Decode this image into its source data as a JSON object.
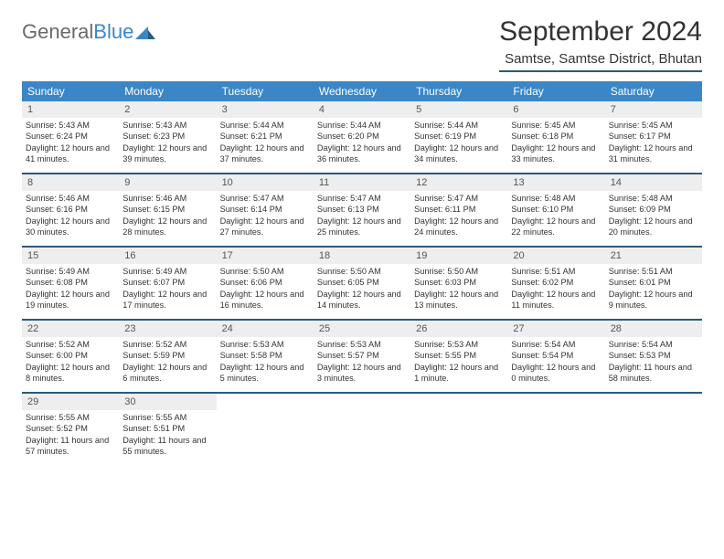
{
  "logo": {
    "text1": "General",
    "text2": "Blue"
  },
  "title": "September 2024",
  "location": "Samtse, Samtse District, Bhutan",
  "colors": {
    "header_bg": "#3b86c6",
    "header_text": "#ffffff",
    "daynum_bg": "#eeeeee",
    "border": "#2b5a7a",
    "logo_gray": "#6a6a6a",
    "logo_blue": "#3b86c6"
  },
  "days_of_week": [
    "Sunday",
    "Monday",
    "Tuesday",
    "Wednesday",
    "Thursday",
    "Friday",
    "Saturday"
  ],
  "days": [
    {
      "n": "1",
      "sunrise": "5:43 AM",
      "sunset": "6:24 PM",
      "daylight": "12 hours and 41 minutes."
    },
    {
      "n": "2",
      "sunrise": "5:43 AM",
      "sunset": "6:23 PM",
      "daylight": "12 hours and 39 minutes."
    },
    {
      "n": "3",
      "sunrise": "5:44 AM",
      "sunset": "6:21 PM",
      "daylight": "12 hours and 37 minutes."
    },
    {
      "n": "4",
      "sunrise": "5:44 AM",
      "sunset": "6:20 PM",
      "daylight": "12 hours and 36 minutes."
    },
    {
      "n": "5",
      "sunrise": "5:44 AM",
      "sunset": "6:19 PM",
      "daylight": "12 hours and 34 minutes."
    },
    {
      "n": "6",
      "sunrise": "5:45 AM",
      "sunset": "6:18 PM",
      "daylight": "12 hours and 33 minutes."
    },
    {
      "n": "7",
      "sunrise": "5:45 AM",
      "sunset": "6:17 PM",
      "daylight": "12 hours and 31 minutes."
    },
    {
      "n": "8",
      "sunrise": "5:46 AM",
      "sunset": "6:16 PM",
      "daylight": "12 hours and 30 minutes."
    },
    {
      "n": "9",
      "sunrise": "5:46 AM",
      "sunset": "6:15 PM",
      "daylight": "12 hours and 28 minutes."
    },
    {
      "n": "10",
      "sunrise": "5:47 AM",
      "sunset": "6:14 PM",
      "daylight": "12 hours and 27 minutes."
    },
    {
      "n": "11",
      "sunrise": "5:47 AM",
      "sunset": "6:13 PM",
      "daylight": "12 hours and 25 minutes."
    },
    {
      "n": "12",
      "sunrise": "5:47 AM",
      "sunset": "6:11 PM",
      "daylight": "12 hours and 24 minutes."
    },
    {
      "n": "13",
      "sunrise": "5:48 AM",
      "sunset": "6:10 PM",
      "daylight": "12 hours and 22 minutes."
    },
    {
      "n": "14",
      "sunrise": "5:48 AM",
      "sunset": "6:09 PM",
      "daylight": "12 hours and 20 minutes."
    },
    {
      "n": "15",
      "sunrise": "5:49 AM",
      "sunset": "6:08 PM",
      "daylight": "12 hours and 19 minutes."
    },
    {
      "n": "16",
      "sunrise": "5:49 AM",
      "sunset": "6:07 PM",
      "daylight": "12 hours and 17 minutes."
    },
    {
      "n": "17",
      "sunrise": "5:50 AM",
      "sunset": "6:06 PM",
      "daylight": "12 hours and 16 minutes."
    },
    {
      "n": "18",
      "sunrise": "5:50 AM",
      "sunset": "6:05 PM",
      "daylight": "12 hours and 14 minutes."
    },
    {
      "n": "19",
      "sunrise": "5:50 AM",
      "sunset": "6:03 PM",
      "daylight": "12 hours and 13 minutes."
    },
    {
      "n": "20",
      "sunrise": "5:51 AM",
      "sunset": "6:02 PM",
      "daylight": "12 hours and 11 minutes."
    },
    {
      "n": "21",
      "sunrise": "5:51 AM",
      "sunset": "6:01 PM",
      "daylight": "12 hours and 9 minutes."
    },
    {
      "n": "22",
      "sunrise": "5:52 AM",
      "sunset": "6:00 PM",
      "daylight": "12 hours and 8 minutes."
    },
    {
      "n": "23",
      "sunrise": "5:52 AM",
      "sunset": "5:59 PM",
      "daylight": "12 hours and 6 minutes."
    },
    {
      "n": "24",
      "sunrise": "5:53 AM",
      "sunset": "5:58 PM",
      "daylight": "12 hours and 5 minutes."
    },
    {
      "n": "25",
      "sunrise": "5:53 AM",
      "sunset": "5:57 PM",
      "daylight": "12 hours and 3 minutes."
    },
    {
      "n": "26",
      "sunrise": "5:53 AM",
      "sunset": "5:55 PM",
      "daylight": "12 hours and 1 minute."
    },
    {
      "n": "27",
      "sunrise": "5:54 AM",
      "sunset": "5:54 PM",
      "daylight": "12 hours and 0 minutes."
    },
    {
      "n": "28",
      "sunrise": "5:54 AM",
      "sunset": "5:53 PM",
      "daylight": "11 hours and 58 minutes."
    },
    {
      "n": "29",
      "sunrise": "5:55 AM",
      "sunset": "5:52 PM",
      "daylight": "11 hours and 57 minutes."
    },
    {
      "n": "30",
      "sunrise": "5:55 AM",
      "sunset": "5:51 PM",
      "daylight": "11 hours and 55 minutes."
    }
  ],
  "labels": {
    "sunrise": "Sunrise:",
    "sunset": "Sunset:",
    "daylight": "Daylight:"
  }
}
